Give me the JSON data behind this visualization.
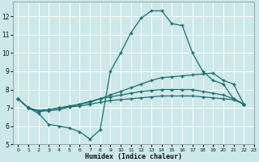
{
  "bg_color": "#cce8e8",
  "grid_color": "#b0d0d0",
  "line_color": "#1a6e6e",
  "line1_y": [
    7.5,
    7.0,
    6.7,
    6.1,
    6.0,
    5.9,
    5.7,
    5.3,
    5.8,
    9.0,
    10.0,
    11.1,
    11.9,
    12.3,
    12.3,
    11.6,
    11.5,
    10.0,
    9.0,
    8.5,
    8.3,
    7.5,
    7.2
  ],
  "line2_y": [
    7.5,
    7.0,
    6.8,
    6.85,
    6.9,
    7.05,
    7.2,
    7.3,
    7.5,
    7.7,
    7.9,
    8.1,
    8.3,
    8.5,
    8.65,
    8.7,
    8.75,
    8.8,
    8.85,
    8.9,
    8.5,
    8.3,
    7.2
  ],
  "line3_y": [
    7.5,
    7.0,
    6.85,
    6.9,
    7.0,
    7.1,
    7.2,
    7.35,
    7.5,
    7.6,
    7.7,
    7.8,
    7.9,
    7.95,
    8.0,
    8.0,
    8.0,
    8.0,
    7.9,
    7.8,
    7.7,
    7.5,
    7.2
  ],
  "line4_y": [
    7.5,
    7.0,
    6.85,
    6.9,
    7.0,
    7.05,
    7.1,
    7.2,
    7.3,
    7.4,
    7.45,
    7.5,
    7.55,
    7.6,
    7.65,
    7.65,
    7.65,
    7.65,
    7.6,
    7.55,
    7.5,
    7.45,
    7.2
  ],
  "xlim": [
    -0.5,
    23
  ],
  "ylim": [
    5,
    12.8
  ],
  "yticks": [
    5,
    6,
    7,
    8,
    9,
    10,
    11,
    12
  ],
  "xticks": [
    0,
    1,
    2,
    3,
    4,
    5,
    6,
    7,
    8,
    9,
    10,
    11,
    12,
    13,
    14,
    15,
    16,
    17,
    18,
    19,
    20,
    21,
    22,
    23
  ],
  "xlabel": "Humidex (Indice chaleur)"
}
